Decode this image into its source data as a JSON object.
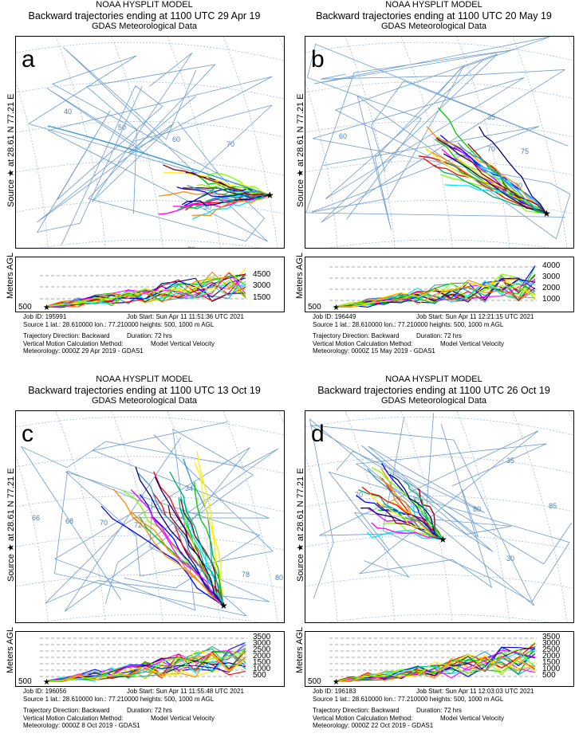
{
  "panels": [
    {
      "letter": "a",
      "model": "NOAA HYSPLIT MODEL",
      "subtitle": "Backward trajectories ending at 1100 UTC 29 Apr 19",
      "source": "GDAS Meteorological Data",
      "side_label": "Source ★ at 28.61 N 77.21 E",
      "agl_label": "Meters AGL",
      "levels": [
        "4500",
        "3000",
        "1500"
      ],
      "start_level": "500",
      "grid_labels": [
        "40",
        "50",
        "60",
        "70",
        "80",
        "30",
        "20"
      ],
      "job_id": "Job ID: 195991",
      "job_start": "Job Start: Sun Apr 11 11:51:36 UTC 2021",
      "source_line": "Source 1 lat.: 28.610000  lon.: 77.210000  heights: 500, 1000 m AGL",
      "direction": "Trajectory Direction: Backward",
      "duration": "Duration: 72 hrs",
      "vertical": "Vertical Motion Calculation Method:",
      "vertical_val": "Model Vertical Velocity",
      "meteorology": "Meteorology: 0000Z 29 Apr 2019 - GDAS1"
    },
    {
      "letter": "b",
      "model": "NOAA HYSPLIT MODEL",
      "subtitle": "Backward trajectories ending at 1100 UTC 20 May 19",
      "source": "GDAS Meteorological Data",
      "side_label": "Source ★ at 28.61 N 77.21 E",
      "agl_label": "Meters AGL",
      "levels": [
        "4000",
        "3000",
        "2000",
        "1000"
      ],
      "start_level": "500",
      "grid_labels": [
        "35",
        "60",
        "70",
        "75",
        "30",
        "25"
      ],
      "job_id": "Job ID: 196449",
      "job_start": "Job Start: Sun Apr 11 12:21:15 UTC 2021",
      "source_line": "Source 1 lat.: 28.610000  lon.: 77.210000  heights: 500, 1000 m AGL",
      "direction": "Trajectory Direction: Backward",
      "duration": "Duration: 72 hrs",
      "vertical": "Vertical Motion Calculation Method:",
      "vertical_val": "Model Vertical Velocity",
      "meteorology": "Meteorology: 0000Z 15 May 2019 - GDAS1"
    },
    {
      "letter": "c",
      "model": "NOAA HYSPLIT MODEL",
      "subtitle": "Backward trajectories ending at 1100 UTC 13 Oct 19",
      "source": "GDAS Meteorological Data",
      "side_label": "Source ★ at 28.61 N 77.21 E",
      "agl_label": "Meters AGL",
      "levels": [
        "3500",
        "3000",
        "2500",
        "2000",
        "1500",
        "1000",
        "500"
      ],
      "start_level": "500",
      "grid_labels": [
        "66",
        "68",
        "70",
        "72",
        "34",
        "78",
        "80",
        "28",
        "26"
      ],
      "job_id": "Job ID: 196056",
      "job_start": "Job Start: Sun Apr 11 11:55:48 UTC 2021",
      "source_line": "Source 1 lat.: 28.610000  lon.: 77.210000  heights: 500, 1000 m AGL",
      "direction": "Trajectory Direction: Backward",
      "duration": "Duration: 72 hrs",
      "vertical": "Vertical Motion Calculation Method:",
      "vertical_val": "Model Vertical Velocity",
      "meteorology": "Meteorology: 0000Z  8 Oct 2019 - GDAS1"
    },
    {
      "letter": "d",
      "model": "NOAA HYSPLIT MODEL",
      "subtitle": "Backward trajectories ending at 1100 UTC 26 Oct 19",
      "source": "GDAS Meteorological Data",
      "side_label": "Source ★ at 28.61 N 77.21 E",
      "agl_label": "Meters AGL",
      "levels": [
        "3500",
        "3000",
        "2500",
        "2000",
        "1500",
        "1000",
        "500"
      ],
      "start_level": "500",
      "grid_labels": [
        "35",
        "70",
        "75",
        "80",
        "85",
        "30",
        "25"
      ],
      "job_id": "Job ID: 196183",
      "job_start": "Job Start: Sun Apr 11 12:03:03 UTC 2021",
      "source_line": "Source 1 lat.: 28.610000  lon.: 77.210000  heights: 500, 1000 m AGL",
      "direction": "Trajectory Direction: Backward",
      "duration": "Duration: 72 hrs",
      "vertical": "Vertical Motion Calculation Method:",
      "vertical_val": "Model Vertical Velocity",
      "meteorology": "Meteorology: 0000Z 22 Oct 2019 - GDAS1"
    }
  ],
  "colors": [
    "#ff0000",
    "#00cc00",
    "#0000ff",
    "#00e5ff",
    "#ff00ff",
    "#ffee00",
    "#ff8800",
    "#7fff00",
    "#8b0000",
    "#3399cc",
    "#000080",
    "#00aa66"
  ]
}
